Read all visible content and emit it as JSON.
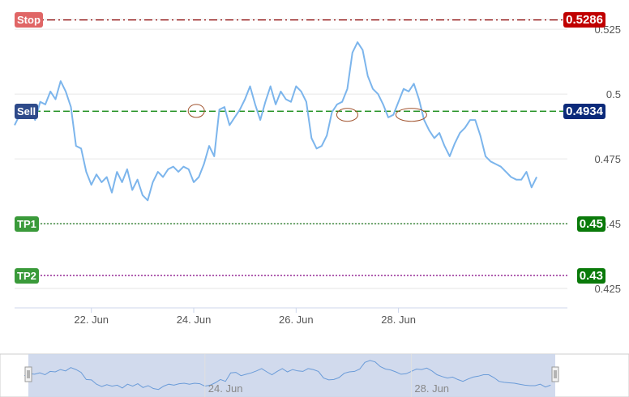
{
  "chart_data": {
    "type": "line",
    "series": [
      {
        "color": "#7cb5ec",
        "x": [
          20.0,
          20.1,
          20.2,
          20.3,
          20.4,
          20.5,
          20.6,
          20.7,
          20.8,
          20.9,
          21.0,
          21.1,
          21.2,
          21.3,
          21.4,
          21.5,
          21.6,
          21.7,
          21.8,
          21.9,
          22.0,
          22.1,
          22.2,
          22.3,
          22.4,
          22.5,
          22.6,
          22.7,
          22.8,
          22.9,
          23.0,
          23.1,
          23.2,
          23.3,
          23.4,
          23.5,
          23.6,
          23.7,
          23.8,
          23.9,
          24.0,
          24.1,
          24.2,
          24.3,
          24.4,
          24.5,
          24.6,
          24.7,
          24.8,
          24.9,
          25.0,
          25.1,
          25.2,
          25.3,
          25.4,
          25.5,
          25.6,
          25.7,
          25.8,
          25.9,
          26.0,
          26.1,
          26.2,
          26.3,
          26.4,
          26.5,
          26.6,
          26.7,
          26.8,
          26.9,
          27.0,
          27.1,
          27.2,
          27.3,
          27.4,
          27.5,
          27.6,
          27.7,
          27.8,
          27.9,
          28.0,
          28.1,
          28.2,
          28.3,
          28.4,
          28.5,
          28.6,
          28.7,
          28.8,
          28.9,
          29.0,
          29.1,
          29.2,
          29.3,
          29.4,
          29.5,
          29.6,
          29.7,
          29.8,
          29.9,
          30.0,
          30.1,
          30.2
        ],
        "y": [
          0.488,
          0.492,
          0.491,
          0.494,
          0.49,
          0.497,
          0.496,
          0.501,
          0.498,
          0.505,
          0.501,
          0.495,
          0.48,
          0.479,
          0.47,
          0.465,
          0.469,
          0.466,
          0.468,
          0.462,
          0.47,
          0.466,
          0.471,
          0.463,
          0.467,
          0.461,
          0.459,
          0.466,
          0.47,
          0.468,
          0.471,
          0.472,
          0.47,
          0.472,
          0.471,
          0.466,
          0.468,
          0.473,
          0.48,
          0.476,
          0.494,
          0.495,
          0.488,
          0.491,
          0.494,
          0.498,
          0.503,
          0.496,
          0.49,
          0.497,
          0.503,
          0.496,
          0.501,
          0.498,
          0.497,
          0.503,
          0.501,
          0.497,
          0.483,
          0.479,
          0.48,
          0.484,
          0.493,
          0.496,
          0.497,
          0.502,
          0.516,
          0.52,
          0.517,
          0.507,
          0.502,
          0.5,
          0.496,
          0.491,
          0.492,
          0.497,
          0.502,
          0.501,
          0.504,
          0.498,
          0.49,
          0.486,
          0.483,
          0.485,
          0.48,
          0.476,
          0.481,
          0.485,
          0.487,
          0.49,
          0.49,
          0.484,
          0.476,
          0.474,
          0.473,
          0.472,
          0.47,
          0.468,
          0.467,
          0.467,
          0.47,
          0.464,
          0.468
        ]
      }
    ],
    "ylim": [
      0.4175,
      0.5363
    ],
    "xlim": [
      20.0,
      30.8
    ],
    "y_ticks": [
      {
        "value": 0.525,
        "label": "0.525"
      },
      {
        "value": 0.5,
        "label": "0.5"
      },
      {
        "value": 0.475,
        "label": "0.475"
      },
      {
        "value": 0.45,
        "label": "0.45"
      },
      {
        "value": 0.425,
        "label": "0.425"
      }
    ],
    "x_ticks": [
      {
        "value": 21.5,
        "label": "22. Jun"
      },
      {
        "value": 23.5,
        "label": "24. Jun"
      },
      {
        "value": 25.5,
        "label": "26. Jun"
      },
      {
        "value": 27.5,
        "label": "28. Jun"
      }
    ],
    "levels": [
      {
        "name": "Stop",
        "value": 0.5286,
        "value_label": "0.5286",
        "color": "#8b0000",
        "tag_color": "#c00000",
        "name_color": "#e06666",
        "dash": "dashdot"
      },
      {
        "name": "Sell",
        "value": 0.4934,
        "value_label": "0.4934",
        "color": "#008000",
        "tag_color": "#0b2a7a",
        "name_color": "#2e4a8a",
        "dash": "dash"
      },
      {
        "name": "TP1",
        "value": 0.45,
        "value_label": "0.45",
        "color": "#006400",
        "tag_color": "#0a7a0a",
        "name_color": "#3a9a3a",
        "dash": "dot"
      },
      {
        "name": "TP2",
        "value": 0.43,
        "value_label": "0.43",
        "color": "#800080",
        "tag_color": "#0a7a0a",
        "name_color": "#3a9a3a",
        "dash": "dot"
      }
    ],
    "circles": [
      {
        "x": 23.55,
        "y": 0.4935
      },
      {
        "x": 26.5,
        "y": 0.492
      },
      {
        "x": 27.75,
        "y": 0.492
      }
    ],
    "navigator": {
      "x_ticks": [
        {
          "value": 23.5,
          "label": "24. Jun"
        },
        {
          "value": 27.5,
          "label": "28. Jun"
        }
      ]
    },
    "grid": true
  }
}
